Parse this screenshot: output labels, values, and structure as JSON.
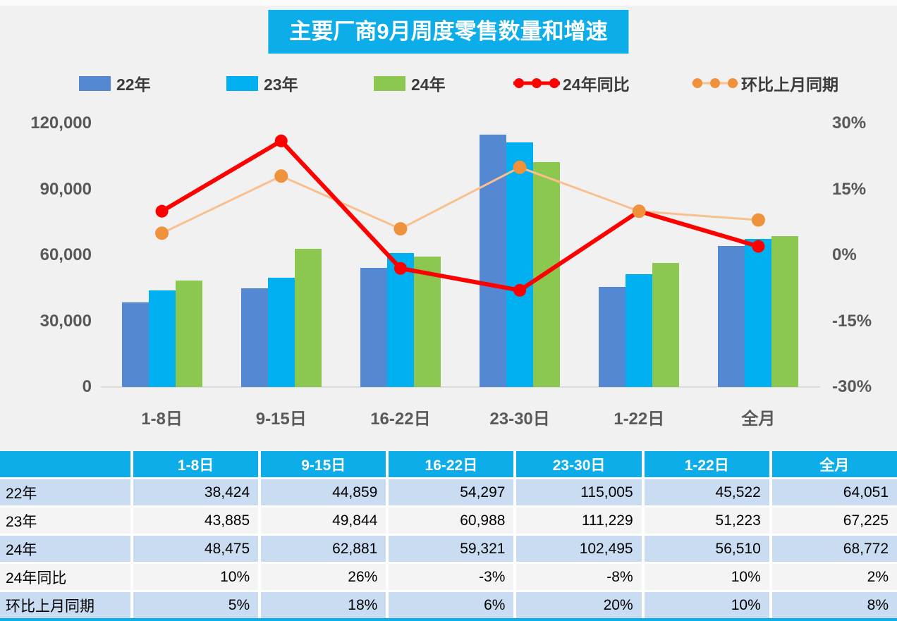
{
  "title": "主要厂商9月周度零售数量和增速",
  "colors": {
    "accent_cyan": "#0CADE8",
    "bar_22": "#5588D2",
    "bar_23": "#00B0F0",
    "bar_24": "#8CC850",
    "line_yoy": "#FE0000",
    "line_mom": "#F9C08F",
    "marker_mom": "#F0913C",
    "background": "#F1F1F2",
    "axis_text": "#595959",
    "baseline": "#DBDBDB",
    "table_row_alt": "#C9DCF2",
    "table_row_plain": "#F4F4F4"
  },
  "legend": [
    {
      "label": "22年",
      "type": "bar",
      "color": "#5588D2"
    },
    {
      "label": "23年",
      "type": "bar",
      "color": "#00B0F0"
    },
    {
      "label": "24年",
      "type": "bar",
      "color": "#8CC850"
    },
    {
      "label": "24年同比",
      "type": "line",
      "color": "#FE0000",
      "marker": "#FE0000"
    },
    {
      "label": "环比上月同期",
      "type": "line",
      "color": "#F9C08F",
      "marker": "#F0913C"
    }
  ],
  "chart_data": {
    "type": "bar",
    "subtype": "grouped-bars-with-lines",
    "title": "主要厂商9月周度零售数量和增速",
    "categories": [
      "1-8日",
      "9-15日",
      "16-22日",
      "23-30日",
      "1-22日",
      "全月"
    ],
    "series": [
      {
        "name": "22年",
        "axis": "left",
        "kind": "bar",
        "color": "#5588D2",
        "values": [
          38424,
          44859,
          54297,
          115005,
          45522,
          64051
        ]
      },
      {
        "name": "23年",
        "axis": "left",
        "kind": "bar",
        "color": "#00B0F0",
        "values": [
          43885,
          49844,
          60988,
          111229,
          51223,
          67225
        ]
      },
      {
        "name": "24年",
        "axis": "left",
        "kind": "bar",
        "color": "#8CC850",
        "values": [
          48475,
          62881,
          59321,
          102495,
          56510,
          68772
        ]
      },
      {
        "name": "24年同比",
        "axis": "right",
        "kind": "line",
        "color": "#FE0000",
        "marker": "#FE0000",
        "values": [
          10,
          26,
          -3,
          -8,
          10,
          2
        ]
      },
      {
        "name": "环比上月同期",
        "axis": "right",
        "kind": "line",
        "color": "#F9C08F",
        "marker": "#F0913C",
        "values": [
          5,
          18,
          6,
          20,
          10,
          8
        ]
      }
    ],
    "left_axis": {
      "min": 0,
      "max": 120000,
      "ticks": [
        "120,000",
        "90,000",
        "60,000",
        "30,000",
        "0"
      ]
    },
    "right_axis": {
      "min": -30,
      "max": 30,
      "ticks": [
        "30%",
        "15%",
        "0%",
        "-15%",
        "-30%"
      ]
    },
    "grid": false,
    "legend_position": "top"
  },
  "table": {
    "header": [
      "",
      "1-8日",
      "9-15日",
      "16-22日",
      "23-30日",
      "1-22日",
      "全月"
    ],
    "rows": [
      {
        "label": "22年",
        "cells": [
          "38,424",
          "44,859",
          "54,297",
          "115,005",
          "45,522",
          "64,051"
        ]
      },
      {
        "label": "23年",
        "cells": [
          "43,885",
          "49,844",
          "60,988",
          "111,229",
          "51,223",
          "67,225"
        ]
      },
      {
        "label": "24年",
        "cells": [
          "48,475",
          "62,881",
          "59,321",
          "102,495",
          "56,510",
          "68,772"
        ]
      },
      {
        "label": "24年同比",
        "cells": [
          "10%",
          "26%",
          "-3%",
          "-8%",
          "10%",
          "2%"
        ]
      },
      {
        "label": "环比上月同期",
        "cells": [
          "5%",
          "18%",
          "6%",
          "20%",
          "10%",
          "8%"
        ]
      }
    ]
  }
}
